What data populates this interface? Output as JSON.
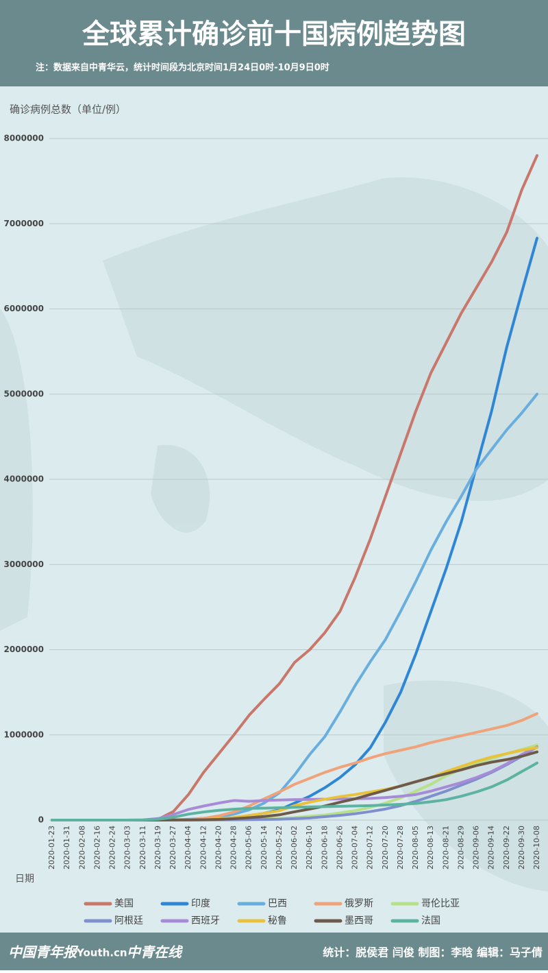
{
  "chart_data": {
    "type": "line",
    "title": "全球累计确诊前十国病例趋势图",
    "subtitle": "注：数据来自中青华云，统计时间段为北京时间1月24日0时-10月9日0时",
    "y_label": "确诊病例总数（单位/例）",
    "x_label": "日期",
    "credits": "统计：脱侯君 闫俊 制图：李晗 编辑：马子倩",
    "logos": [
      "中国青年报",
      "Youth.cn",
      "中青在线"
    ],
    "categories": [
      "2020-01-23",
      "2020-01-31",
      "2020-02-08",
      "2020-02-16",
      "2020-02-24",
      "2020-03-03",
      "2020-03-11",
      "2020-03-19",
      "2020-03-27",
      "2020-04-04",
      "2020-04-12",
      "2020-04-20",
      "2020-04-28",
      "2020-05-06",
      "2020-05-14",
      "2020-05-22",
      "2020-06-02",
      "2020-06-10",
      "2020-06-18",
      "2020-06-26",
      "2020-07-04",
      "2020-07-12",
      "2020-07-20",
      "2020-07-28",
      "2020-08-05",
      "2020-08-13",
      "2020-08-21",
      "2020-08-29",
      "2020-09-06",
      "2020-09-14",
      "2020-09-22",
      "2020-09-30",
      "2020-10-08"
    ],
    "ylim": [
      0,
      8000000
    ],
    "yticks": [
      0,
      1000000,
      2000000,
      3000000,
      4000000,
      5000000,
      6000000,
      7000000,
      8000000
    ],
    "grid": true,
    "series": [
      {
        "name": "美国",
        "color": "#c8776a",
        "values": [
          0,
          0,
          0,
          0,
          0,
          0,
          1000,
          10000,
          100000,
          300000,
          560000,
          780000,
          1000000,
          1230000,
          1420000,
          1600000,
          1850000,
          2000000,
          2200000,
          2450000,
          2850000,
          3300000,
          3800000,
          4300000,
          4800000,
          5250000,
          5600000,
          5950000,
          6250000,
          6550000,
          6900000,
          7400000,
          7800000
        ]
      },
      {
        "name": "印度",
        "color": "#2f86d6",
        "values": [
          0,
          0,
          0,
          0,
          0,
          0,
          0,
          0,
          0,
          3000,
          9000,
          20000,
          30000,
          50000,
          80000,
          120000,
          200000,
          280000,
          380000,
          500000,
          650000,
          850000,
          1150000,
          1500000,
          1950000,
          2450000,
          2950000,
          3500000,
          4150000,
          4800000,
          5550000,
          6200000,
          6830000
        ]
      },
      {
        "name": "巴西",
        "color": "#6aaedf",
        "values": [
          0,
          0,
          0,
          0,
          0,
          0,
          0,
          0,
          3000,
          10000,
          20000,
          40000,
          70000,
          120000,
          200000,
          320000,
          530000,
          770000,
          980000,
          1270000,
          1580000,
          1860000,
          2120000,
          2450000,
          2800000,
          3170000,
          3500000,
          3800000,
          4120000,
          4350000,
          4580000,
          4780000,
          5000000
        ]
      },
      {
        "name": "俄罗斯",
        "color": "#eea37a",
        "values": [
          0,
          0,
          0,
          0,
          0,
          0,
          0,
          0,
          1000,
          5000,
          20000,
          50000,
          95000,
          165000,
          250000,
          330000,
          420000,
          490000,
          560000,
          620000,
          670000,
          730000,
          780000,
          820000,
          860000,
          910000,
          950000,
          990000,
          1030000,
          1070000,
          1110000,
          1170000,
          1250000
        ]
      },
      {
        "name": "哥伦比亚",
        "color": "#b8e08a",
        "values": [
          0,
          0,
          0,
          0,
          0,
          0,
          0,
          0,
          500,
          1500,
          3000,
          4000,
          6000,
          9000,
          14000,
          20000,
          30000,
          45000,
          60000,
          85000,
          110000,
          150000,
          200000,
          260000,
          340000,
          420000,
          520000,
          600000,
          670000,
          720000,
          780000,
          830000,
          880000
        ]
      },
      {
        "name": "阿根廷",
        "color": "#7d8fcc",
        "values": [
          0,
          0,
          0,
          0,
          0,
          0,
          0,
          0,
          700,
          1400,
          2200,
          3000,
          4300,
          5000,
          7000,
          10000,
          17000,
          25000,
          40000,
          55000,
          75000,
          100000,
          130000,
          170000,
          220000,
          280000,
          340000,
          410000,
          480000,
          560000,
          650000,
          750000,
          860000
        ]
      },
      {
        "name": "西班牙",
        "color": "#a88bd6",
        "values": [
          0,
          0,
          0,
          0,
          0,
          0,
          2000,
          18000,
          65000,
          125000,
          165000,
          200000,
          230000,
          220000,
          230000,
          235000,
          240000,
          242000,
          245000,
          248000,
          250000,
          255000,
          265000,
          280000,
          300000,
          340000,
          390000,
          440000,
          500000,
          570000,
          660000,
          770000,
          860000
        ]
      },
      {
        "name": "秘鲁",
        "color": "#e8c23c",
        "values": [
          0,
          0,
          0,
          0,
          0,
          0,
          0,
          0,
          1000,
          2000,
          7000,
          17000,
          30000,
          55000,
          80000,
          110000,
          170000,
          210000,
          245000,
          275000,
          300000,
          330000,
          360000,
          400000,
          450000,
          500000,
          570000,
          630000,
          690000,
          740000,
          780000,
          820000,
          850000
        ]
      },
      {
        "name": "墨西哥",
        "color": "#6e5a4a",
        "values": [
          0,
          0,
          0,
          0,
          0,
          0,
          0,
          0,
          1000,
          2000,
          4000,
          8000,
          16000,
          28000,
          42000,
          62000,
          97000,
          130000,
          165000,
          210000,
          250000,
          300000,
          350000,
          400000,
          450000,
          500000,
          545000,
          590000,
          640000,
          680000,
          710000,
          750000,
          800000
        ]
      },
      {
        "name": "法国",
        "color": "#5cb3a1",
        "values": [
          0,
          0,
          0,
          0,
          0,
          0,
          2000,
          10000,
          33000,
          70000,
          95000,
          115000,
          128000,
          138000,
          140000,
          145000,
          150000,
          155000,
          158000,
          162000,
          166000,
          170000,
          177000,
          185000,
          195000,
          215000,
          240000,
          280000,
          330000,
          390000,
          470000,
          570000,
          670000
        ]
      }
    ]
  }
}
